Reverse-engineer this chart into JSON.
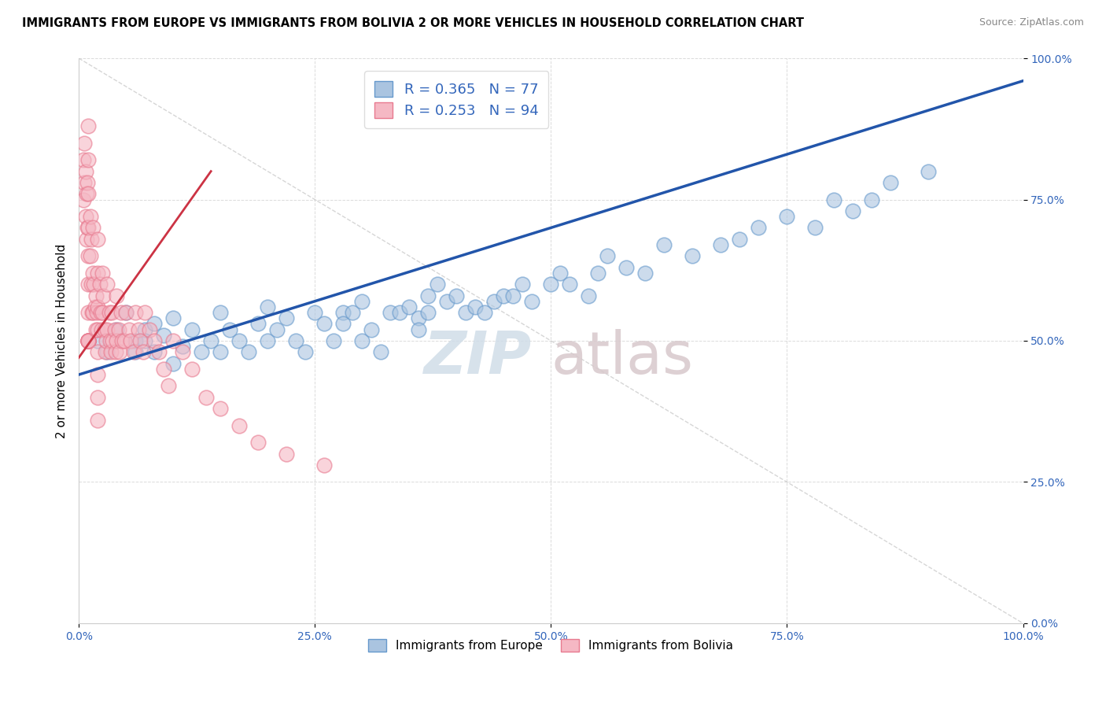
{
  "title": "IMMIGRANTS FROM EUROPE VS IMMIGRANTS FROM BOLIVIA 2 OR MORE VEHICLES IN HOUSEHOLD CORRELATION CHART",
  "source": "Source: ZipAtlas.com",
  "ylabel": "2 or more Vehicles in Household",
  "xlim": [
    0.0,
    1.0
  ],
  "ylim": [
    0.0,
    1.0
  ],
  "xticks": [
    0.0,
    0.25,
    0.5,
    0.75,
    1.0
  ],
  "yticks": [
    0.0,
    0.25,
    0.5,
    0.75,
    1.0
  ],
  "xtick_labels": [
    "0.0%",
    "25.0%",
    "50.0%",
    "75.0%",
    "100.0%"
  ],
  "ytick_labels": [
    "0.0%",
    "25.0%",
    "50.0%",
    "75.0%",
    "100.0%"
  ],
  "europe_color": "#aac4e0",
  "europe_edge": "#6699cc",
  "bolivia_color": "#f5b8c4",
  "bolivia_edge": "#e87a8f",
  "europe_R": 0.365,
  "europe_N": 77,
  "bolivia_R": 0.253,
  "bolivia_N": 94,
  "europe_line_color": "#2255aa",
  "bolivia_line_color": "#cc3344",
  "legend_label_europe": "Immigrants from Europe",
  "legend_label_bolivia": "Immigrants from Bolivia",
  "watermark_zip": "ZIP",
  "watermark_atlas": "atlas",
  "tick_color": "#3366bb",
  "eu_x": [
    0.02,
    0.03,
    0.04,
    0.05,
    0.06,
    0.06,
    0.07,
    0.07,
    0.08,
    0.08,
    0.09,
    0.1,
    0.1,
    0.11,
    0.12,
    0.13,
    0.14,
    0.15,
    0.15,
    0.16,
    0.17,
    0.18,
    0.19,
    0.2,
    0.2,
    0.21,
    0.22,
    0.23,
    0.24,
    0.25,
    0.26,
    0.27,
    0.28,
    0.28,
    0.29,
    0.3,
    0.3,
    0.31,
    0.32,
    0.33,
    0.34,
    0.35,
    0.36,
    0.36,
    0.37,
    0.37,
    0.38,
    0.39,
    0.4,
    0.41,
    0.42,
    0.43,
    0.44,
    0.45,
    0.46,
    0.47,
    0.48,
    0.5,
    0.51,
    0.52,
    0.54,
    0.55,
    0.56,
    0.58,
    0.6,
    0.62,
    0.65,
    0.68,
    0.7,
    0.72,
    0.75,
    0.78,
    0.8,
    0.82,
    0.84,
    0.86,
    0.9
  ],
  "eu_y": [
    0.5,
    0.48,
    0.52,
    0.55,
    0.5,
    0.48,
    0.52,
    0.5,
    0.53,
    0.48,
    0.51,
    0.54,
    0.46,
    0.49,
    0.52,
    0.48,
    0.5,
    0.55,
    0.48,
    0.52,
    0.5,
    0.48,
    0.53,
    0.56,
    0.5,
    0.52,
    0.54,
    0.5,
    0.48,
    0.55,
    0.53,
    0.5,
    0.55,
    0.53,
    0.55,
    0.57,
    0.5,
    0.52,
    0.48,
    0.55,
    0.55,
    0.56,
    0.54,
    0.52,
    0.58,
    0.55,
    0.6,
    0.57,
    0.58,
    0.55,
    0.56,
    0.55,
    0.57,
    0.58,
    0.58,
    0.6,
    0.57,
    0.6,
    0.62,
    0.6,
    0.58,
    0.62,
    0.65,
    0.63,
    0.62,
    0.67,
    0.65,
    0.67,
    0.68,
    0.7,
    0.72,
    0.7,
    0.75,
    0.73,
    0.75,
    0.78,
    0.8
  ],
  "bo_x": [
    0.005,
    0.005,
    0.006,
    0.006,
    0.007,
    0.007,
    0.008,
    0.008,
    0.009,
    0.009,
    0.01,
    0.01,
    0.01,
    0.01,
    0.01,
    0.01,
    0.01,
    0.01,
    0.01,
    0.01,
    0.01,
    0.01,
    0.01,
    0.01,
    0.01,
    0.012,
    0.012,
    0.013,
    0.013,
    0.014,
    0.015,
    0.015,
    0.015,
    0.016,
    0.017,
    0.018,
    0.018,
    0.019,
    0.02,
    0.02,
    0.02,
    0.02,
    0.02,
    0.02,
    0.02,
    0.02,
    0.022,
    0.023,
    0.024,
    0.025,
    0.025,
    0.026,
    0.027,
    0.028,
    0.029,
    0.03,
    0.03,
    0.032,
    0.033,
    0.034,
    0.035,
    0.036,
    0.038,
    0.039,
    0.04,
    0.04,
    0.042,
    0.043,
    0.045,
    0.046,
    0.048,
    0.05,
    0.053,
    0.055,
    0.058,
    0.06,
    0.063,
    0.065,
    0.068,
    0.07,
    0.075,
    0.08,
    0.085,
    0.09,
    0.095,
    0.1,
    0.11,
    0.12,
    0.135,
    0.15,
    0.17,
    0.19,
    0.22,
    0.26
  ],
  "bo_y": [
    0.82,
    0.75,
    0.85,
    0.78,
    0.8,
    0.72,
    0.76,
    0.68,
    0.78,
    0.7,
    0.88,
    0.82,
    0.76,
    0.7,
    0.65,
    0.6,
    0.55,
    0.5,
    0.5,
    0.5,
    0.5,
    0.5,
    0.5,
    0.5,
    0.5,
    0.72,
    0.65,
    0.68,
    0.6,
    0.55,
    0.7,
    0.62,
    0.55,
    0.6,
    0.56,
    0.58,
    0.52,
    0.55,
    0.68,
    0.62,
    0.56,
    0.52,
    0.48,
    0.44,
    0.4,
    0.36,
    0.6,
    0.55,
    0.52,
    0.62,
    0.55,
    0.58,
    0.52,
    0.48,
    0.5,
    0.6,
    0.52,
    0.55,
    0.5,
    0.48,
    0.55,
    0.5,
    0.52,
    0.48,
    0.58,
    0.5,
    0.52,
    0.48,
    0.55,
    0.5,
    0.5,
    0.55,
    0.52,
    0.5,
    0.48,
    0.55,
    0.52,
    0.5,
    0.48,
    0.55,
    0.52,
    0.5,
    0.48,
    0.45,
    0.42,
    0.5,
    0.48,
    0.45,
    0.4,
    0.38,
    0.35,
    0.32,
    0.3,
    0.28
  ],
  "eu_line_x0": 0.0,
  "eu_line_x1": 1.0,
  "eu_line_y0": 0.44,
  "eu_line_y1": 0.96,
  "bo_line_x0": 0.0,
  "bo_line_x1": 0.14,
  "bo_line_y0": 0.47,
  "bo_line_y1": 0.8
}
